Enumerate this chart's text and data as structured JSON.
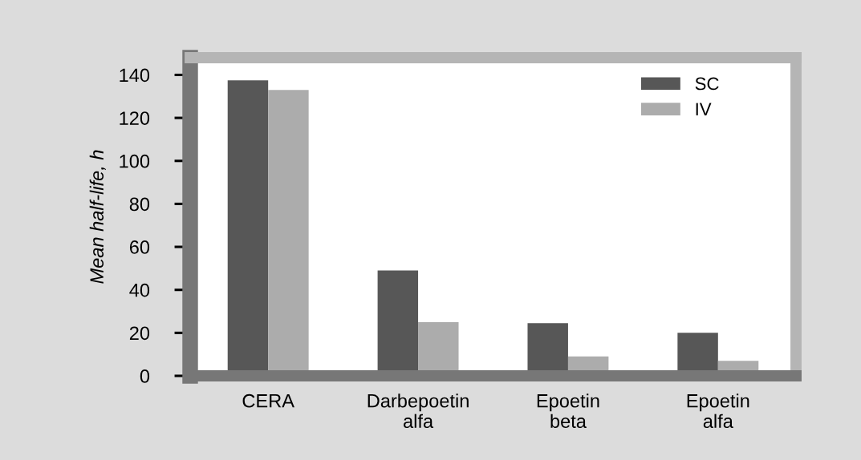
{
  "chart_data": {
    "type": "bar",
    "ylabel": "Mean half-life, h",
    "categories": [
      "CERA",
      "Darbepoetin\nalfa",
      "Epoetin\nbeta",
      "Epoetin\nalfa"
    ],
    "series": [
      {
        "name": "SC",
        "color": "#575757",
        "values": [
          137.5,
          49,
          24.5,
          20
        ]
      },
      {
        "name": "IV",
        "color": "#acacac",
        "values": [
          133,
          25,
          9,
          7
        ]
      }
    ],
    "ylim": [
      0,
      148
    ],
    "yticks": [
      0,
      20,
      40,
      60,
      80,
      100,
      120,
      140
    ],
    "grid": false,
    "legend": "top right"
  }
}
